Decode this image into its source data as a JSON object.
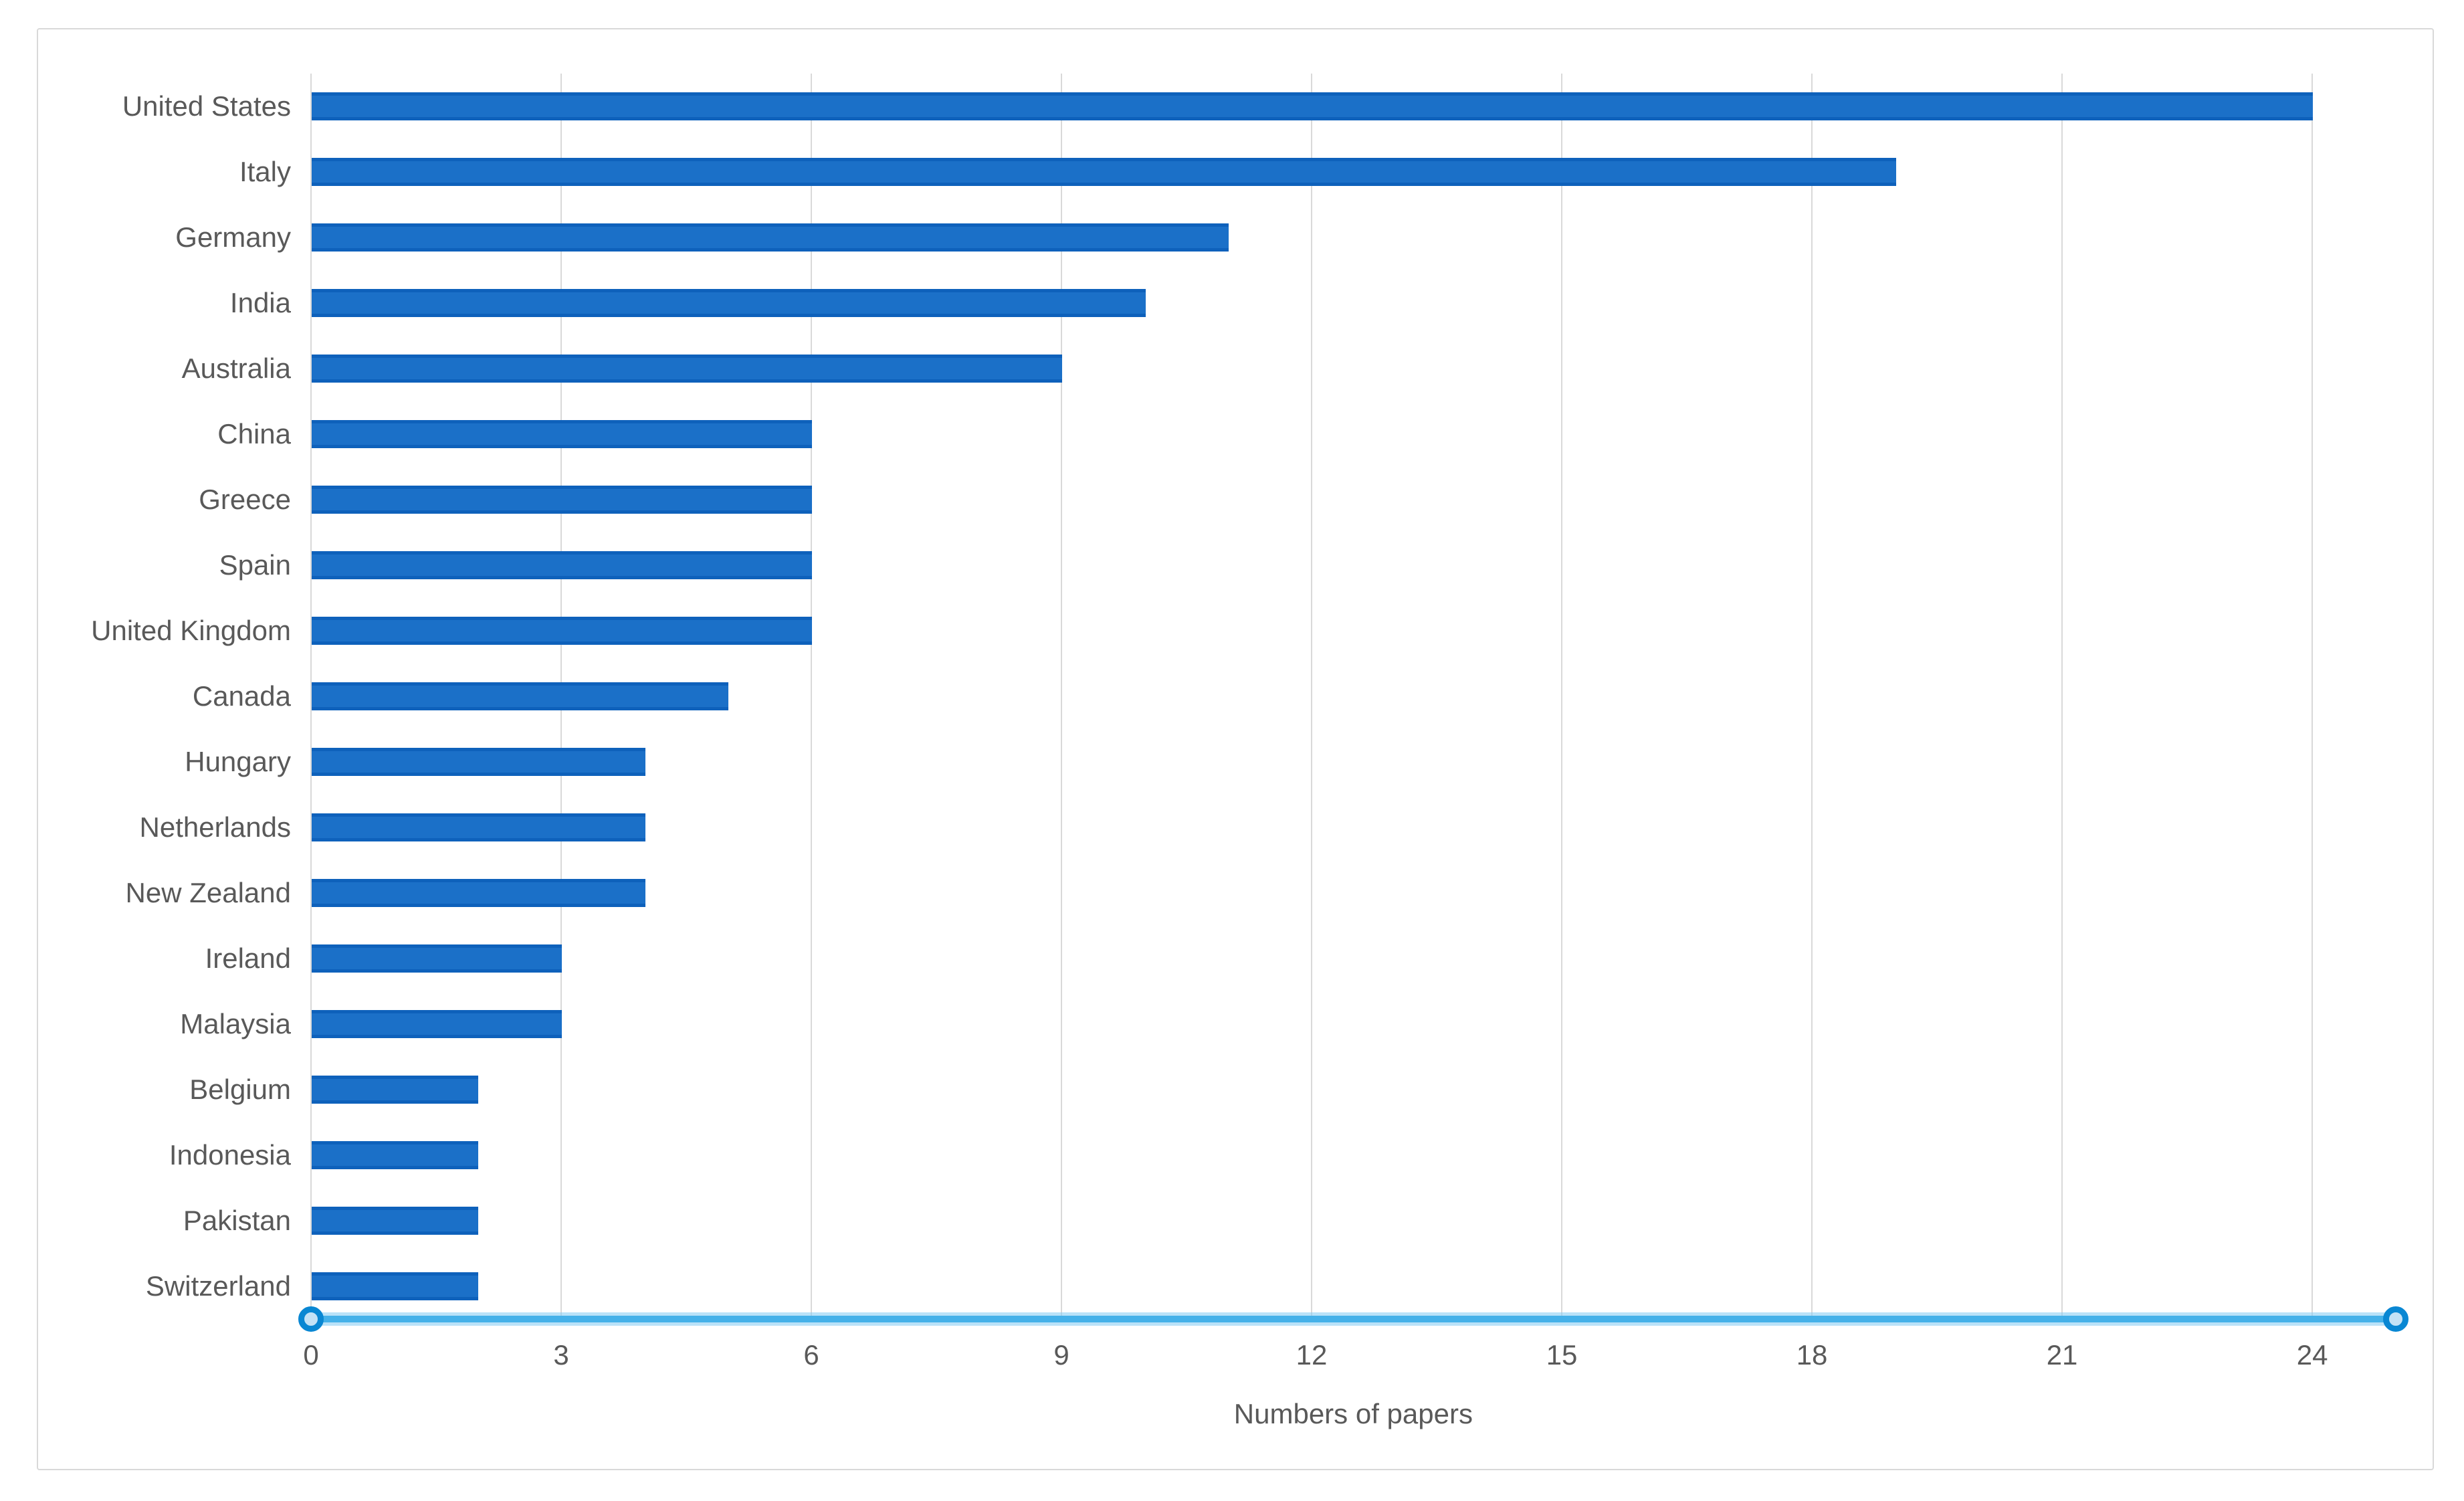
{
  "chart_data": {
    "type": "bar",
    "orientation": "horizontal",
    "xlabel": "Numbers of papers",
    "categories": [
      "United States",
      "Italy",
      "Germany",
      "India",
      "Australia",
      "China",
      "Greece",
      "Spain",
      "United Kingdom",
      "Canada",
      "Hungary",
      "Netherlands",
      "New Zealand",
      "Ireland",
      "Malaysia",
      "Belgium",
      "Indonesia",
      "Pakistan",
      "Switzerland"
    ],
    "values": [
      24,
      19,
      11,
      10,
      9,
      6,
      6,
      6,
      6,
      5,
      4,
      4,
      4,
      3,
      3,
      2,
      2,
      2,
      2
    ],
    "xticks": [
      0,
      3,
      6,
      9,
      12,
      15,
      18,
      21,
      24
    ],
    "xlim": [
      0,
      25
    ],
    "grid": true,
    "legend_position": "none",
    "colors": {
      "bar": "#1b70c8",
      "bar_edge": "#0e61bb",
      "gridline": "#d9d9d9",
      "label_text": "#595959",
      "axis_line": "#45b1e9",
      "axis_line_halo": "rgba(130,202,242,0.55)",
      "marker_ring": "#0987d3",
      "marker_fill": "#c3e2f6",
      "chart_border": "#d9d9d9",
      "background": "#ffffff"
    }
  }
}
